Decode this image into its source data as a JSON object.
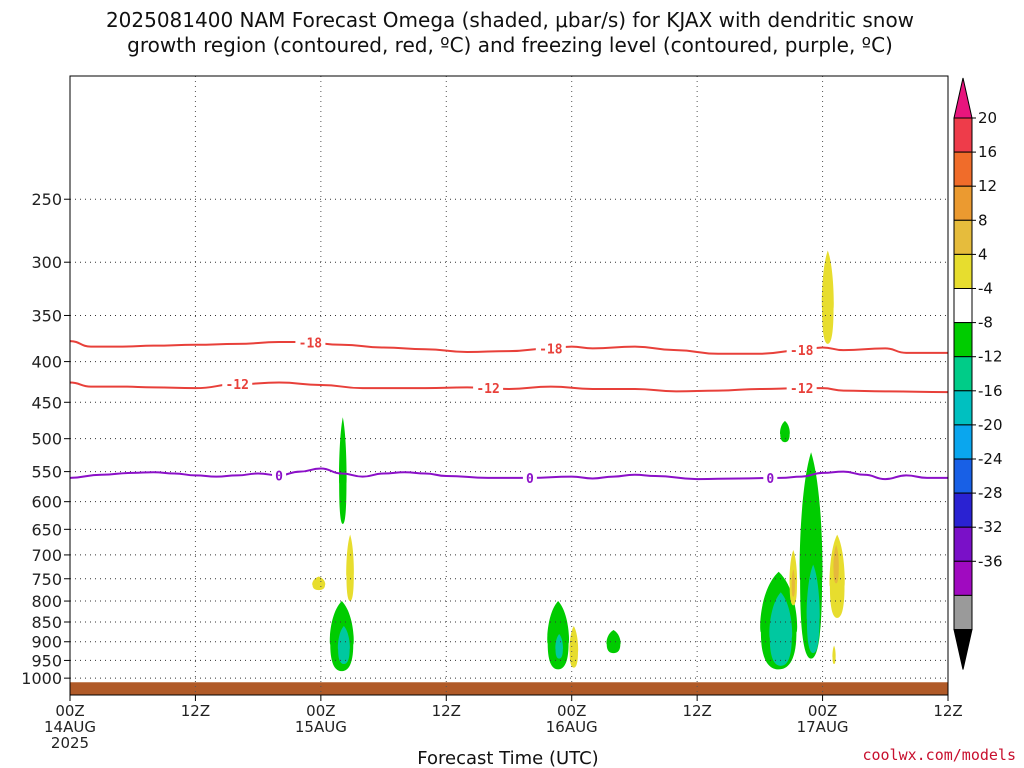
{
  "title_line1": "2025081400 NAM Forecast Omega (shaded, μbar/s) for KJAX with dendritic snow",
  "title_line2": "growth region (contoured, red, ºC) and freezing level (contoured, purple, ºC)",
  "xlabel": "Forecast Time (UTC)",
  "credit": "coolwx.com/models",
  "chart_data": {
    "type": "heatmap",
    "x_range_hours": [
      0,
      84
    ],
    "x_ticks": [
      {
        "hour": 0,
        "line1": "00Z",
        "line2": "14AUG",
        "line3": "2025"
      },
      {
        "hour": 12,
        "line1": "12Z",
        "line2": "",
        "line3": ""
      },
      {
        "hour": 24,
        "line1": "00Z",
        "line2": "15AUG",
        "line3": ""
      },
      {
        "hour": 36,
        "line1": "12Z",
        "line2": "",
        "line3": ""
      },
      {
        "hour": 48,
        "line1": "00Z",
        "line2": "16AUG",
        "line3": ""
      },
      {
        "hour": 60,
        "line1": "12Z",
        "line2": "",
        "line3": ""
      },
      {
        "hour": 72,
        "line1": "00Z",
        "line2": "17AUG",
        "line3": ""
      },
      {
        "hour": 84,
        "line1": "12Z",
        "line2": "",
        "line3": ""
      }
    ],
    "y_scale": "log",
    "y_range_hpa": [
      1050,
      175
    ],
    "y_ticks": [
      250,
      300,
      350,
      400,
      450,
      500,
      550,
      600,
      650,
      700,
      750,
      800,
      850,
      900,
      950,
      1000
    ],
    "grid": true,
    "contours": [
      {
        "label": "-18",
        "color": "#e8403a",
        "points": [
          [
            0,
            377
          ],
          [
            2,
            383
          ],
          [
            5,
            383
          ],
          [
            8,
            382
          ],
          [
            12,
            381
          ],
          [
            16,
            380
          ],
          [
            20,
            378
          ],
          [
            22,
            378
          ],
          [
            26,
            381
          ],
          [
            30,
            384
          ],
          [
            34,
            386
          ],
          [
            38,
            389
          ],
          [
            42,
            388
          ],
          [
            46,
            385
          ],
          [
            48,
            383
          ],
          [
            50,
            385
          ],
          [
            54,
            383
          ],
          [
            58,
            387
          ],
          [
            62,
            391
          ],
          [
            66,
            391
          ],
          [
            70,
            387
          ],
          [
            72,
            384
          ],
          [
            74,
            387
          ],
          [
            78,
            385
          ],
          [
            80,
            390
          ],
          [
            84,
            390
          ]
        ],
        "label_hours": [
          23,
          46,
          70
        ]
      },
      {
        "label": "-12",
        "color": "#e8403a",
        "points": [
          [
            0,
            425
          ],
          [
            2,
            430
          ],
          [
            5,
            430
          ],
          [
            8,
            431
          ],
          [
            12,
            432
          ],
          [
            16,
            427
          ],
          [
            20,
            425
          ],
          [
            24,
            428
          ],
          [
            28,
            432
          ],
          [
            34,
            432
          ],
          [
            38,
            431
          ],
          [
            42,
            433
          ],
          [
            46,
            430
          ],
          [
            50,
            433
          ],
          [
            54,
            433
          ],
          [
            58,
            436
          ],
          [
            62,
            435
          ],
          [
            66,
            433
          ],
          [
            70,
            432
          ],
          [
            72,
            432
          ],
          [
            74,
            435
          ],
          [
            78,
            436
          ],
          [
            84,
            437
          ]
        ],
        "label_hours": [
          16,
          40,
          70
        ]
      },
      {
        "label": "0",
        "color": "#8b10c8",
        "points": [
          [
            0,
            560
          ],
          [
            3,
            555
          ],
          [
            6,
            552
          ],
          [
            8,
            551
          ],
          [
            10,
            553
          ],
          [
            12,
            556
          ],
          [
            14,
            558
          ],
          [
            16,
            556
          ],
          [
            18,
            553
          ],
          [
            20,
            556
          ],
          [
            22,
            550
          ],
          [
            24,
            545
          ],
          [
            26,
            553
          ],
          [
            28,
            558
          ],
          [
            30,
            553
          ],
          [
            32,
            551
          ],
          [
            34,
            553
          ],
          [
            36,
            557
          ],
          [
            40,
            560
          ],
          [
            44,
            560
          ],
          [
            48,
            558
          ],
          [
            50,
            561
          ],
          [
            52,
            558
          ],
          [
            54,
            555
          ],
          [
            56,
            557
          ],
          [
            60,
            562
          ],
          [
            64,
            561
          ],
          [
            68,
            560
          ],
          [
            70,
            558
          ],
          [
            72,
            552
          ],
          [
            74,
            550
          ],
          [
            76,
            555
          ],
          [
            78,
            562
          ],
          [
            80,
            556
          ],
          [
            82,
            560
          ],
          [
            84,
            560
          ]
        ],
        "label_hours": [
          20,
          44,
          67
        ]
      }
    ],
    "shaded_cells": [
      {
        "color": "#00cc00",
        "x_center": 26.1,
        "half_width": 0.35,
        "p_top": 470,
        "p_bottom": 640
      },
      {
        "color": "#e7dd2e",
        "x_center": 23.8,
        "half_width": 0.6,
        "p_top": 745,
        "p_bottom": 775
      },
      {
        "color": "#e7dd2e",
        "x_center": 26.8,
        "half_width": 0.35,
        "p_top": 660,
        "p_bottom": 800
      },
      {
        "color": "#00cc00",
        "x_center": 26.0,
        "half_width": 1.1,
        "p_top": 800,
        "p_bottom": 980
      },
      {
        "color": "#00c8a0",
        "x_center": 26.2,
        "half_width": 0.55,
        "p_top": 860,
        "p_bottom": 960
      },
      {
        "color": "#00cc00",
        "x_center": 46.7,
        "half_width": 1.0,
        "p_top": 800,
        "p_bottom": 975
      },
      {
        "color": "#00c8a0",
        "x_center": 46.8,
        "half_width": 0.35,
        "p_top": 880,
        "p_bottom": 945
      },
      {
        "color": "#e7dd2e",
        "x_center": 48.2,
        "half_width": 0.4,
        "p_top": 860,
        "p_bottom": 970
      },
      {
        "color": "#00cc00",
        "x_center": 52.0,
        "half_width": 0.65,
        "p_top": 870,
        "p_bottom": 930
      },
      {
        "color": "#00cc00",
        "x_center": 68.4,
        "half_width": 0.45,
        "p_top": 475,
        "p_bottom": 505
      },
      {
        "color": "#00cc00",
        "x_center": 67.8,
        "half_width": 1.7,
        "p_top": 735,
        "p_bottom": 975
      },
      {
        "color": "#00c8a0",
        "x_center": 68.0,
        "half_width": 1.05,
        "p_top": 780,
        "p_bottom": 965
      },
      {
        "color": "#00cc00",
        "x_center": 70.9,
        "half_width": 1.05,
        "p_top": 520,
        "p_bottom": 945
      },
      {
        "color": "#00c8a0",
        "x_center": 71.1,
        "half_width": 0.6,
        "p_top": 720,
        "p_bottom": 930
      },
      {
        "color": "#e7dd2e",
        "x_center": 69.2,
        "half_width": 0.35,
        "p_top": 690,
        "p_bottom": 810
      },
      {
        "color": "#e6b83c",
        "x_center": 69.2,
        "half_width": 0.15,
        "p_top": 730,
        "p_bottom": 790
      },
      {
        "color": "#e7dd2e",
        "x_center": 72.5,
        "half_width": 0.55,
        "p_top": 290,
        "p_bottom": 380
      },
      {
        "color": "#e7dd2e",
        "x_center": 73.4,
        "half_width": 0.7,
        "p_top": 660,
        "p_bottom": 840
      },
      {
        "color": "#e6b83c",
        "x_center": 73.3,
        "half_width": 0.25,
        "p_top": 680,
        "p_bottom": 760
      },
      {
        "color": "#e7dd2e",
        "x_center": 73.1,
        "half_width": 0.15,
        "p_top": 910,
        "p_bottom": 960
      }
    ],
    "terrain": {
      "color": "#b05a28",
      "p_level": 1012
    },
    "colorbar": {
      "labels": [
        "20",
        "16",
        "12",
        "8",
        "4",
        "-4",
        "-8",
        "-12",
        "-16",
        "-20",
        "-24",
        "-28",
        "-32",
        "-36"
      ],
      "colors": [
        "#ee3c4a",
        "#f06c2a",
        "#eb9a30",
        "#e6bc3c",
        "#e7dd2e",
        "#ffffff",
        "#00cc00",
        "#00cc88",
        "#00c0c0",
        "#0aa6ee",
        "#1860e6",
        "#2a22d2",
        "#7a10c8",
        "#a00ac0",
        "#9a9a9a"
      ],
      "top_arrow_color": "#e8157d",
      "bottom_arrow_color": "#000000"
    }
  }
}
